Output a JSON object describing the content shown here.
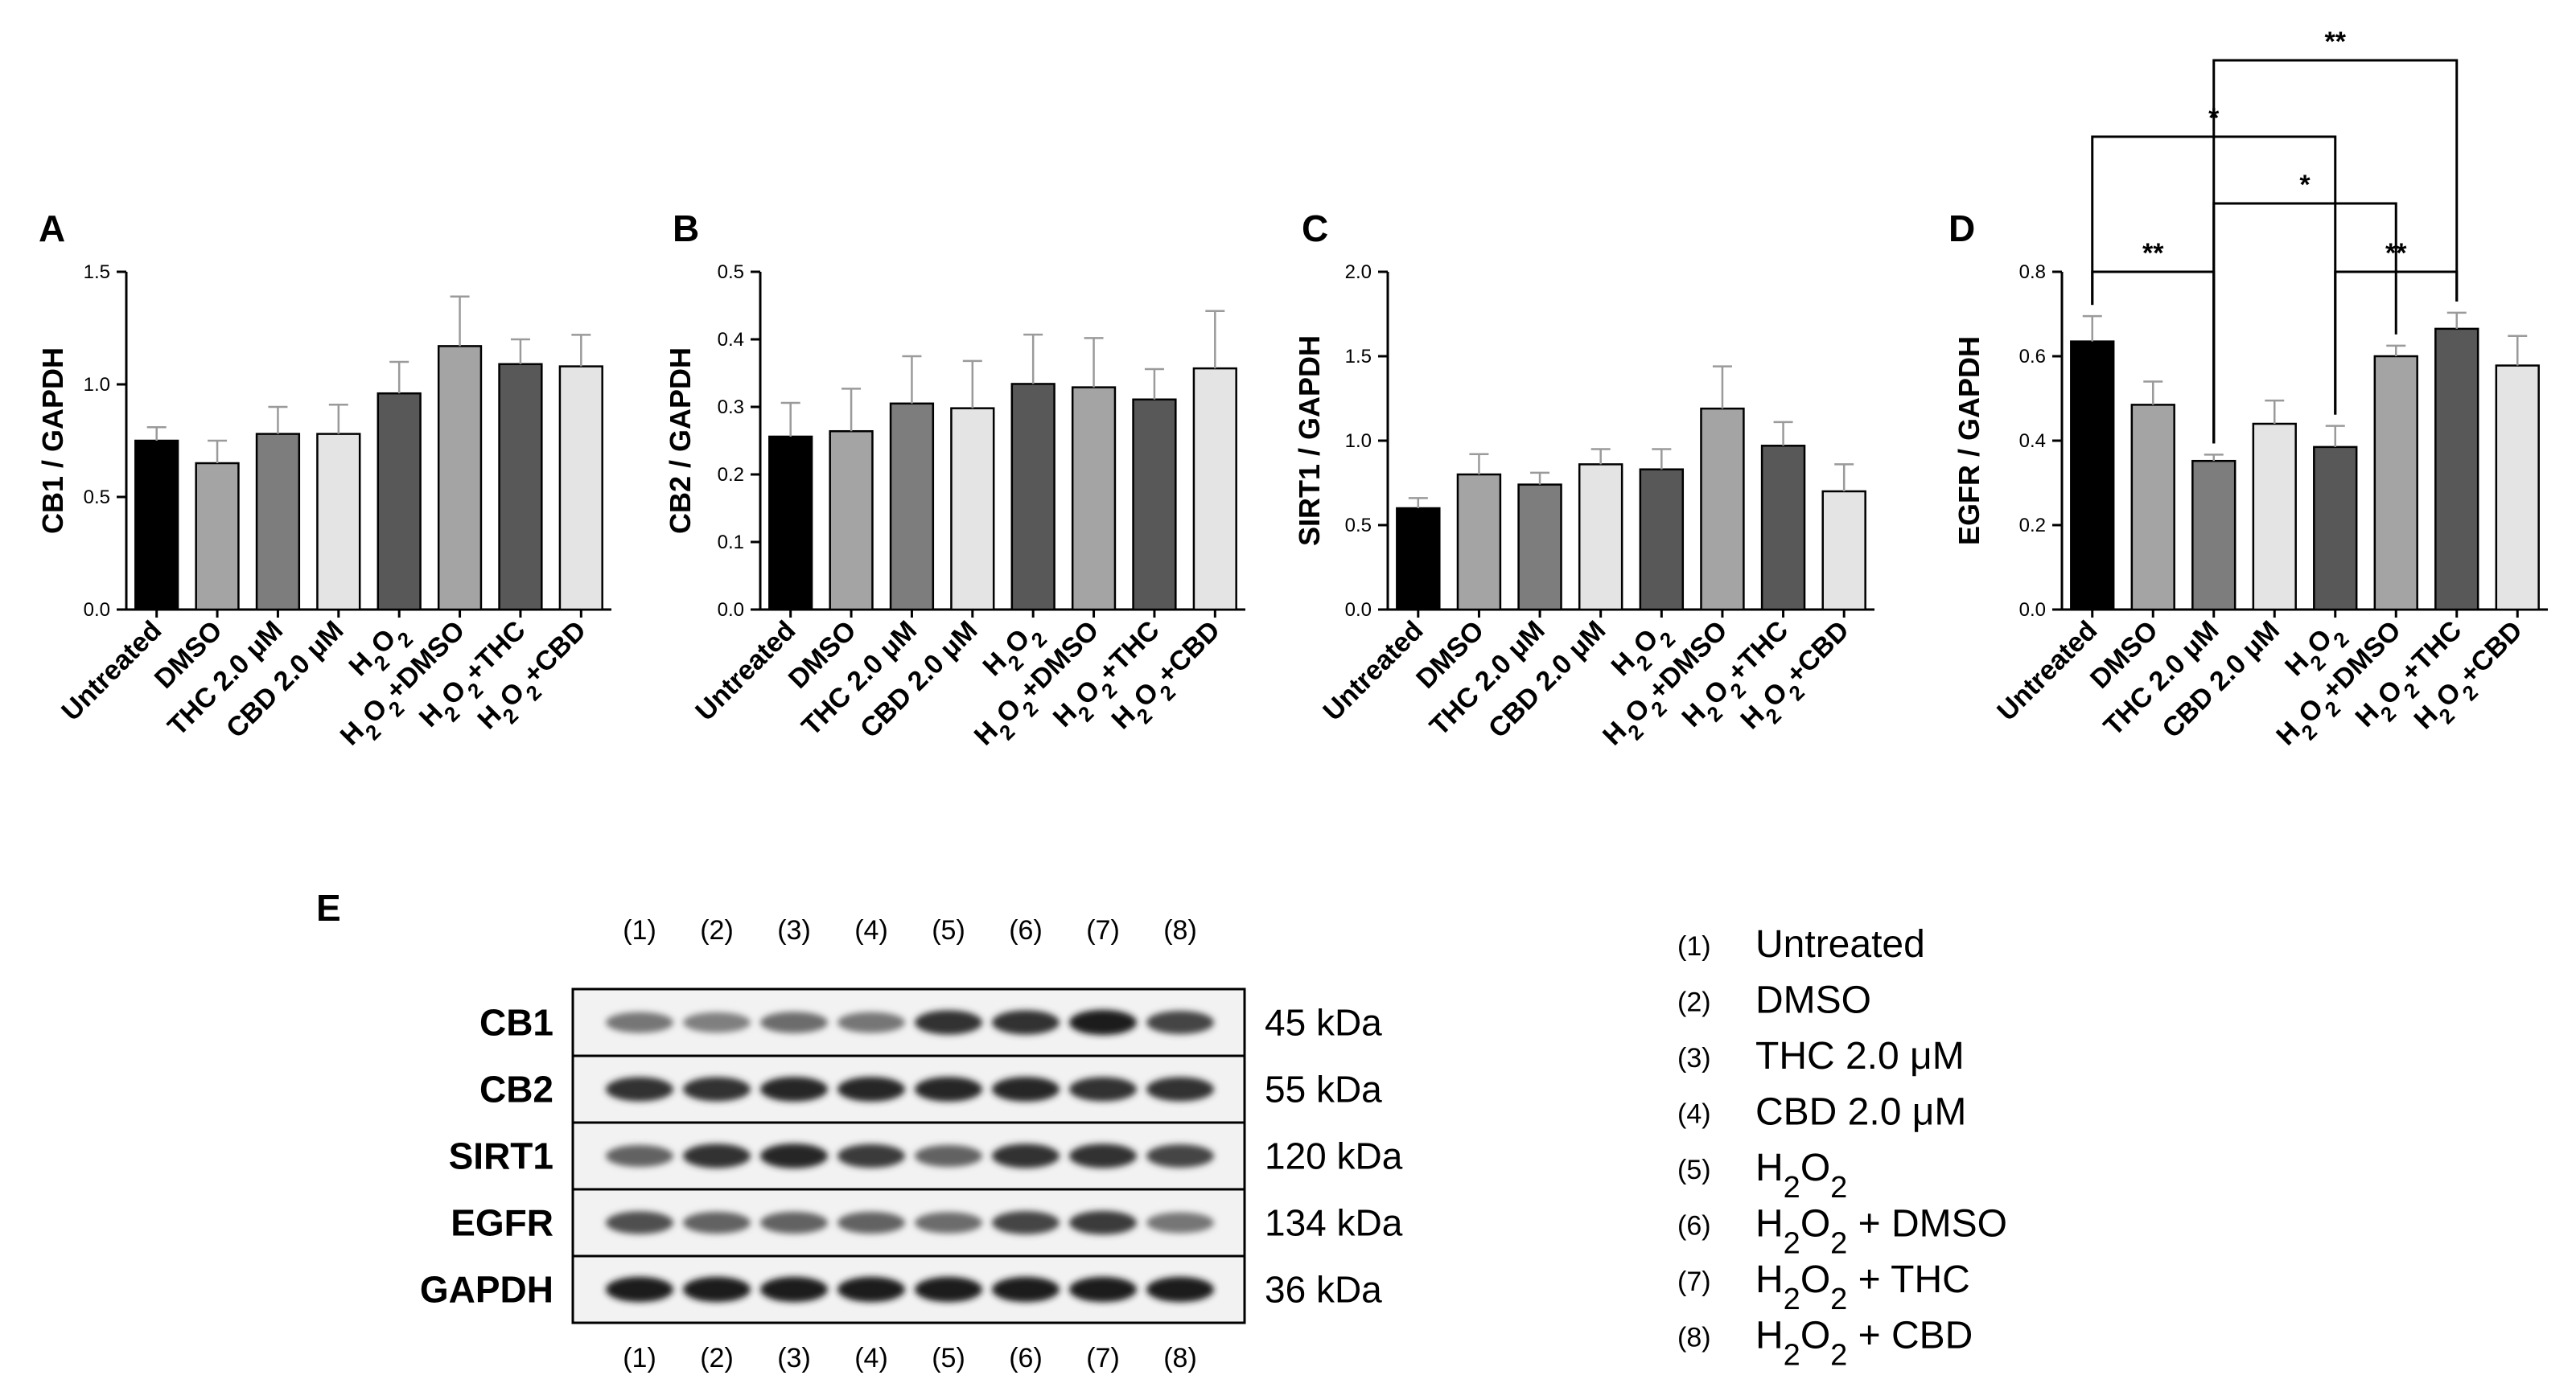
{
  "figure": {
    "colors": {
      "bar_fills": [
        "#000000",
        "#a4a4a4",
        "#7d7d7d",
        "#e4e4e4",
        "#585858",
        "#a4a4a4",
        "#585858",
        "#e4e4e4"
      ],
      "error_bar": "#9a9a9a",
      "axis": "#000000",
      "blot_background": "#f2f2f2",
      "band": "#1c1c1c"
    }
  },
  "chart_data": [
    {
      "panel": "A",
      "type": "bar",
      "ylabel": "CB1 / GAPDH",
      "ylim": [
        0,
        1.5
      ],
      "yticks": [
        "0.0",
        "0.5",
        "1.0",
        "1.5"
      ],
      "categories": [
        "Untreated",
        "DMSO",
        "THC 2.0 μM",
        "CBD 2.0 μM",
        "H2O2",
        "H2O2+DMSO",
        "H2O2+THC",
        "H2O2+CBD"
      ],
      "values": [
        0.75,
        0.65,
        0.78,
        0.78,
        0.96,
        1.17,
        1.09,
        1.08
      ],
      "errors": [
        0.06,
        0.1,
        0.12,
        0.13,
        0.14,
        0.22,
        0.11,
        0.14
      ],
      "significance": []
    },
    {
      "panel": "B",
      "type": "bar",
      "ylabel": "CB2 / GAPDH",
      "ylim": [
        0,
        0.5
      ],
      "yticks": [
        "0.0",
        "0.1",
        "0.2",
        "0.3",
        "0.4",
        "0.5"
      ],
      "categories": [
        "Untreated",
        "DMSO",
        "THC 2.0 μM",
        "CBD 2.0 μM",
        "H2O2",
        "H2O2+DMSO",
        "H2O2+THC",
        "H2O2+CBD"
      ],
      "values": [
        0.256,
        0.264,
        0.305,
        0.298,
        0.334,
        0.329,
        0.311,
        0.357
      ],
      "errors": [
        0.05,
        0.063,
        0.07,
        0.07,
        0.073,
        0.073,
        0.045,
        0.085
      ],
      "significance": []
    },
    {
      "panel": "C",
      "type": "bar",
      "ylabel": "SIRT1 / GAPDH",
      "ylim": [
        0,
        2.0
      ],
      "yticks": [
        "0.0",
        "0.5",
        "1.0",
        "1.5",
        "2.0"
      ],
      "categories": [
        "Untreated",
        "DMSO",
        "THC 2.0 μM",
        "CBD 2.0 μM",
        "H2O2",
        "H2O2+DMSO",
        "H2O2+THC",
        "H2O2+CBD"
      ],
      "values": [
        0.6,
        0.8,
        0.74,
        0.86,
        0.83,
        1.19,
        0.97,
        0.7
      ],
      "errors": [
        0.06,
        0.12,
        0.07,
        0.09,
        0.12,
        0.25,
        0.14,
        0.16
      ],
      "significance": []
    },
    {
      "panel": "D",
      "type": "bar",
      "ylabel": "EGFR / GAPDH",
      "ylim": [
        0,
        0.8
      ],
      "yticks": [
        "0.0",
        "0.2",
        "0.4",
        "0.6",
        "0.8"
      ],
      "categories": [
        "Untreated",
        "DMSO",
        "THC 2.0 μM",
        "CBD 2.0 μM",
        "H2O2",
        "H2O2+DMSO",
        "H2O2+THC",
        "H2O2+CBD"
      ],
      "values": [
        0.635,
        0.485,
        0.352,
        0.44,
        0.385,
        0.6,
        0.665,
        0.578
      ],
      "errors": [
        0.06,
        0.055,
        0.015,
        0.055,
        0.05,
        0.025,
        0.038,
        0.07
      ],
      "significance": [
        {
          "from": 0,
          "to": 2,
          "label": "**"
        },
        {
          "from": 4,
          "to": 6,
          "label": "**"
        },
        {
          "from": 2,
          "to": 5,
          "label": "*"
        },
        {
          "from": 0,
          "to": 4,
          "label": "*"
        },
        {
          "from": 2,
          "to": 6,
          "label": "**"
        }
      ]
    }
  ],
  "blot": {
    "panel": "E",
    "lane_labels": [
      "(1)",
      "(2)",
      "(3)",
      "(4)",
      "(5)",
      "(6)",
      "(7)",
      "(8)"
    ],
    "rows": [
      {
        "protein": "CB1",
        "size": "45 kDa",
        "intensities": [
          0.5,
          0.45,
          0.55,
          0.5,
          0.85,
          0.85,
          0.95,
          0.75
        ]
      },
      {
        "protein": "CB2",
        "size": "55 kDa",
        "intensities": [
          0.85,
          0.85,
          0.9,
          0.9,
          0.9,
          0.9,
          0.85,
          0.85
        ]
      },
      {
        "protein": "SIRT1",
        "size": "120 kDa",
        "intensities": [
          0.6,
          0.85,
          0.9,
          0.8,
          0.6,
          0.85,
          0.85,
          0.75
        ]
      },
      {
        "protein": "EGFR",
        "size": "134 kDa",
        "intensities": [
          0.7,
          0.6,
          0.6,
          0.6,
          0.55,
          0.75,
          0.8,
          0.5
        ]
      },
      {
        "protein": "GAPDH",
        "size": "36 kDa",
        "intensities": [
          0.95,
          0.95,
          0.95,
          0.95,
          0.95,
          0.95,
          0.95,
          0.95
        ]
      }
    ]
  },
  "legend": [
    {
      "num": "(1)",
      "label": "Untreated"
    },
    {
      "num": "(2)",
      "label": "DMSO"
    },
    {
      "num": "(3)",
      "label": "THC 2.0 μM"
    },
    {
      "num": "(4)",
      "label": "CBD 2.0 μM"
    },
    {
      "num": "(5)",
      "label": "H2O2"
    },
    {
      "num": "(6)",
      "label": "H2O2 + DMSO"
    },
    {
      "num": "(7)",
      "label": "H2O2 + THC"
    },
    {
      "num": "(8)",
      "label": "H2O2 + CBD"
    }
  ]
}
